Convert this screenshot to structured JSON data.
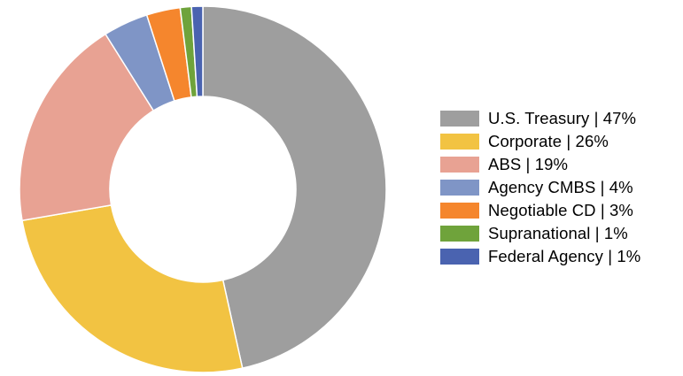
{
  "chart_data": {
    "type": "pie",
    "donut": true,
    "title": "",
    "legend_position": "right",
    "slices": [
      {
        "label": "U.S. Treasury | 47%",
        "category": "U.S. Treasury",
        "value": 47,
        "color": "#9e9e9e"
      },
      {
        "label": "Corporate | 26%",
        "category": "Corporate",
        "value": 26,
        "color": "#f2c342"
      },
      {
        "label": "ABS | 19%",
        "category": "ABS",
        "value": 19,
        "color": "#e8a293"
      },
      {
        "label": "Agency CMBS | 4%",
        "category": "Agency CMBS",
        "value": 4,
        "color": "#7f95c6"
      },
      {
        "label": "Negotiable CD | 3%",
        "category": "Negotiable CD",
        "value": 3,
        "color": "#f5862d"
      },
      {
        "label": "Supranational | 1%",
        "category": "Supranational",
        "value": 1,
        "color": "#6fa33b"
      },
      {
        "label": "Federal Agency | 1%",
        "category": "Federal Agency",
        "value": 1,
        "color": "#4a63b0"
      }
    ]
  }
}
